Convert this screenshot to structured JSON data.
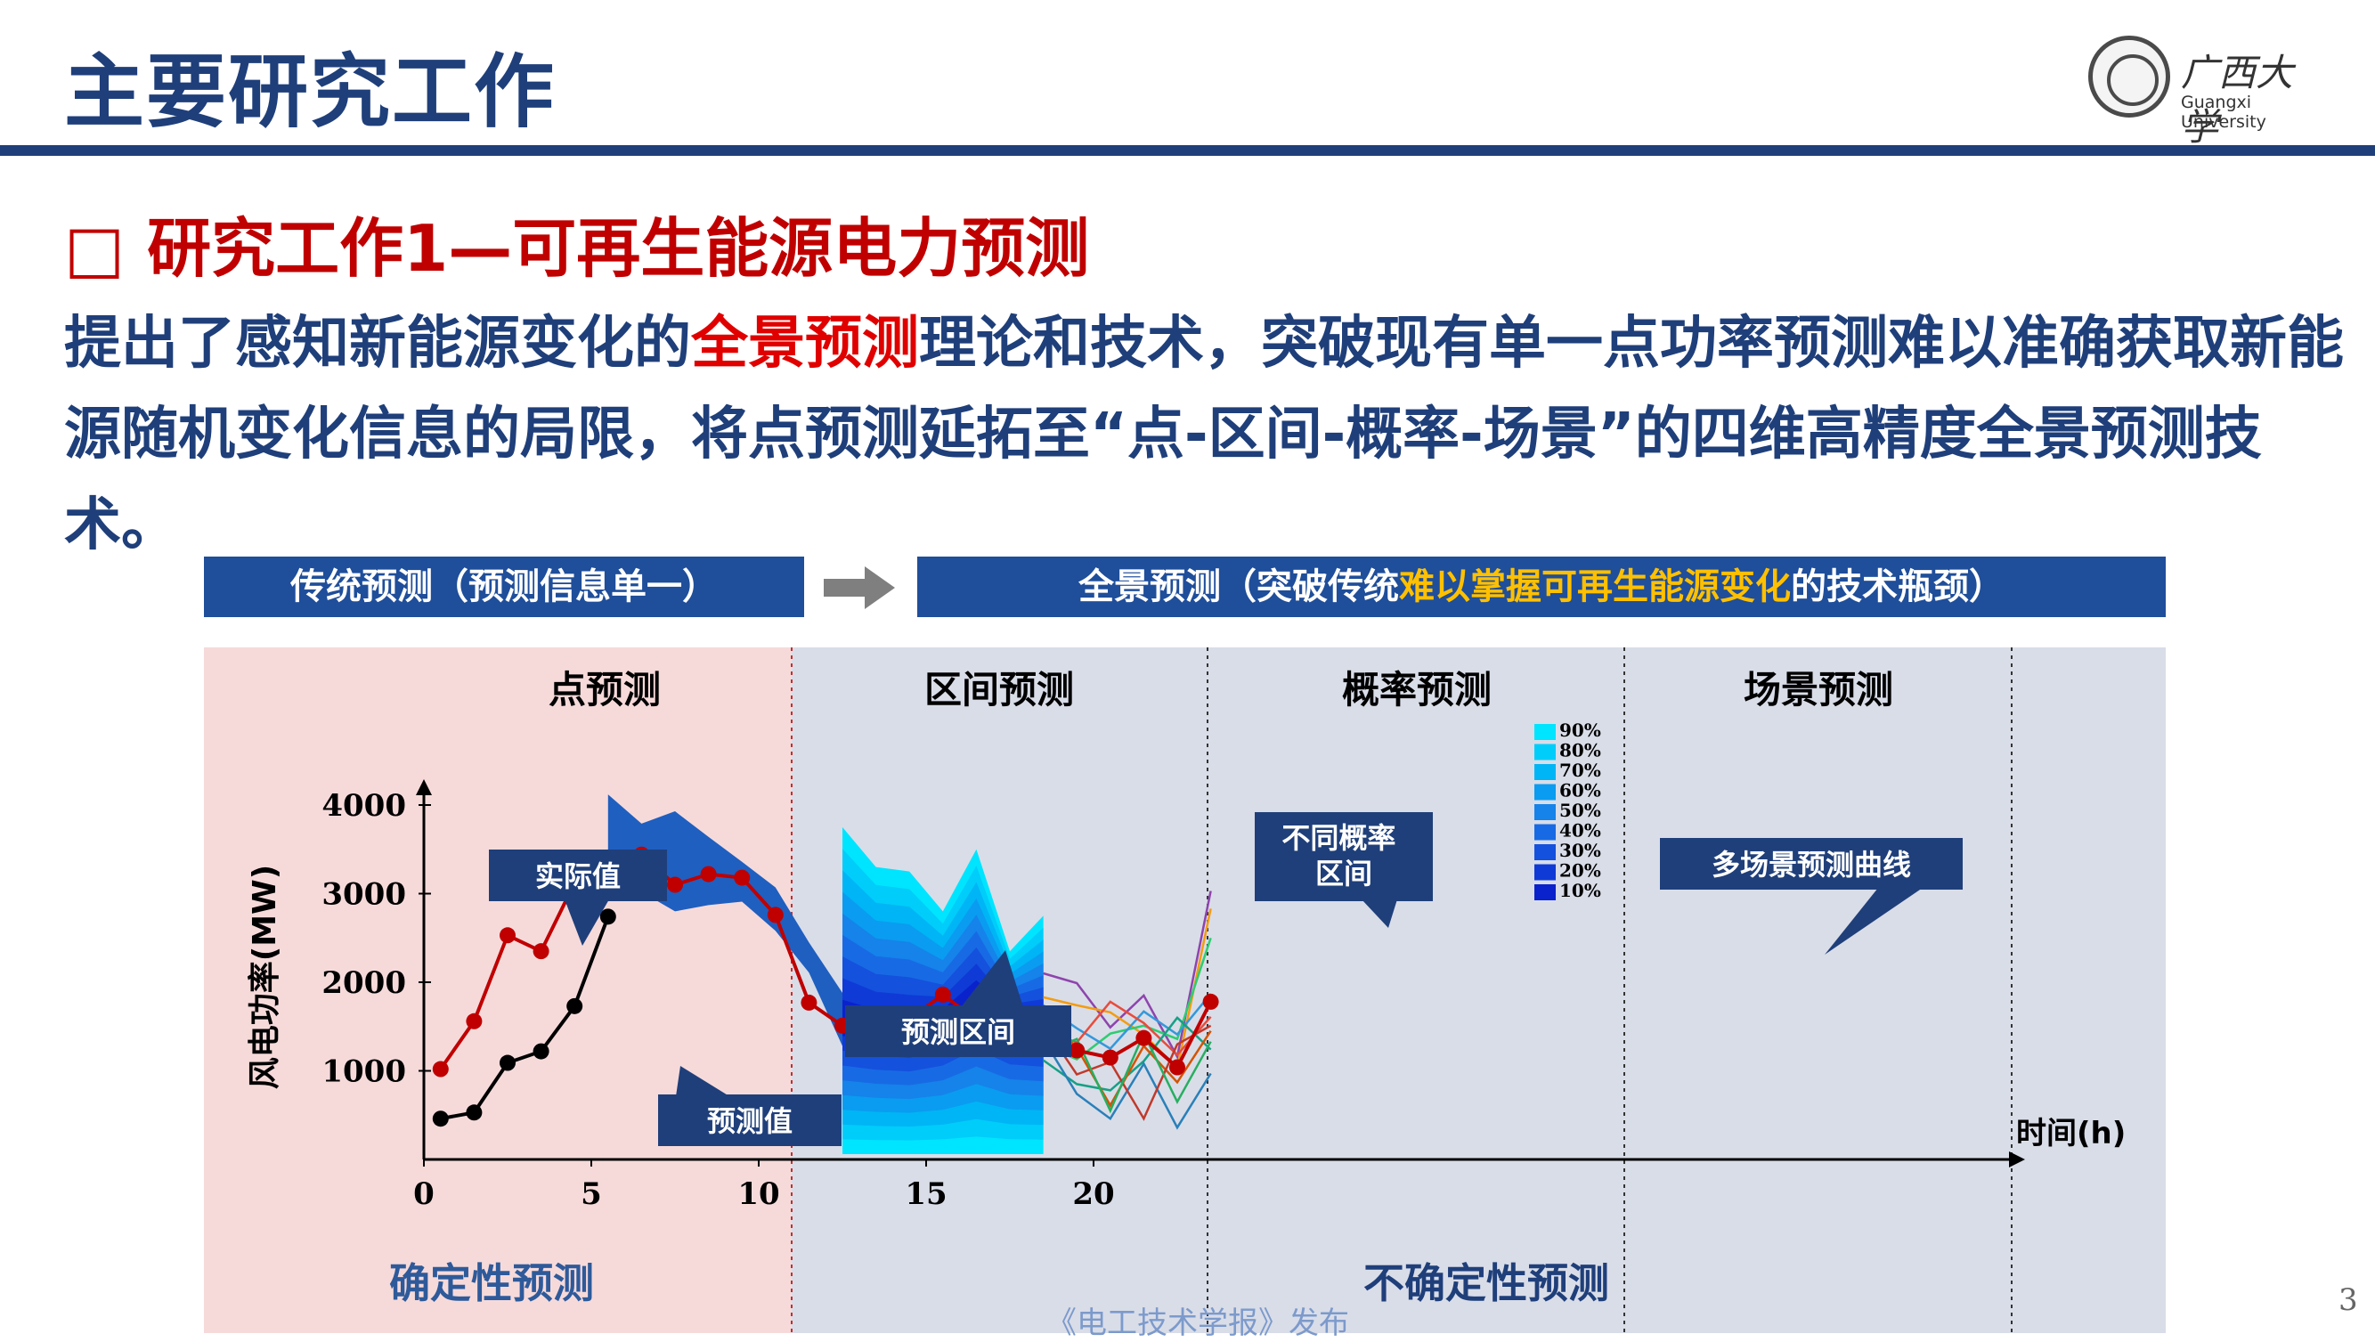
{
  "header": {
    "title": "主要研究工作",
    "logo_name": "广西大学",
    "logo_en": "Guangxi University"
  },
  "section": {
    "subtitle": "□ 研究工作1—可再生能源电力预测",
    "intro_before": "提出了感知新能源变化的",
    "intro_highlight": "全景预测",
    "intro_after": "理论和技术，突破现有单一点功率预测难以准确获取新能源随机变化信息的局限，将点预测延拓至“点-区间-概率-场景”的四维高精度全景预测技术。"
  },
  "banner": {
    "left": "传统预测（预测信息单一）",
    "right_before": "全景预测（突破传统",
    "right_highlight": "难以掌握可再生能源变化",
    "right_after": "的技术瓶颈）"
  },
  "colors": {
    "navy": "#1f3f7a",
    "red": "#c00000",
    "band": "#1f5fc0",
    "callout": "#1f3f7a",
    "left_panel": "#f6dada",
    "right_panel": "#d9dde8"
  },
  "chart_data": {
    "type": "line",
    "ylabel": "风电功率(MW)",
    "xlabel": "时间(h)",
    "xlim": [
      0,
      24
    ],
    "ylim": [
      0,
      4500
    ],
    "xticks": [
      "0",
      "5",
      "10",
      "15",
      "20"
    ],
    "yticks": [
      "1000",
      "2000",
      "3000",
      "4000"
    ],
    "section_titles": [
      "点预测",
      "区间预测",
      "概率预测",
      "场景预测"
    ],
    "bottom_labels": [
      "确定性预测",
      "不确定性预测"
    ],
    "callouts": [
      "实际值",
      "预测值",
      "预测区间",
      "不同概率区间",
      "多场景预测曲线"
    ],
    "legend": [
      "90%",
      "80%",
      "70%",
      "60%",
      "50%",
      "40%",
      "30%",
      "20%",
      "10%"
    ],
    "series": [
      {
        "name": "实际值",
        "x": [
          0.5,
          1.5,
          2.5,
          3.5,
          4.5,
          5.5,
          6.5,
          7.5,
          8.5,
          9.5,
          10.5,
          11.5,
          12.5,
          13.5,
          14.5,
          15.5,
          16.5,
          17.5,
          18.5,
          19.5,
          20.5,
          21.5,
          22.5,
          23.5
        ],
        "y": [
          1020,
          1560,
          2530,
          2350,
          3120,
          3130,
          3440,
          3100,
          3220,
          3180,
          2760,
          1770,
          1510,
          1440,
          1580,
          1860,
          1570,
          1560,
          1500,
          1230,
          1150,
          1370,
          1040,
          1780
        ]
      },
      {
        "name": "预测值",
        "x": [
          0.5,
          1.5,
          2.5,
          3.5,
          4.5,
          5.5
        ],
        "y": [
          460,
          530,
          1090,
          1220,
          1730,
          2740
        ]
      }
    ]
  },
  "footer": {
    "page": "3",
    "source": "《电工技术学报》发布"
  }
}
